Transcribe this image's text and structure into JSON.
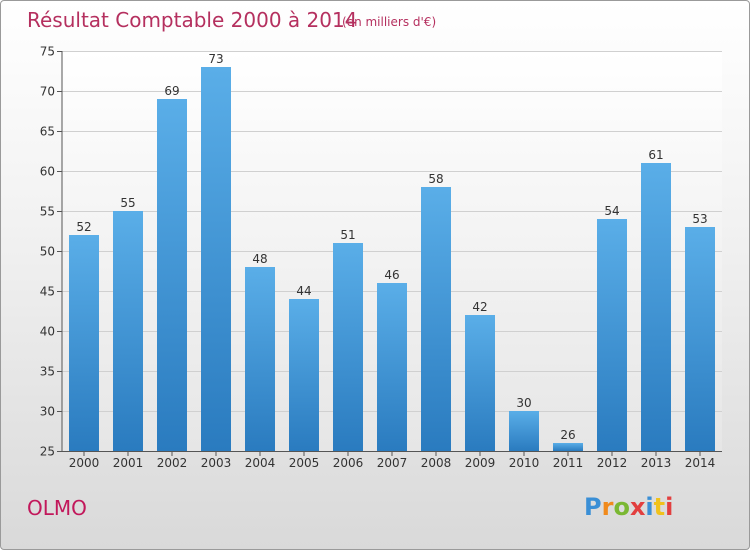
{
  "header": {
    "title": "Résultat Comptable 2000 à 2014",
    "subtitle": "(en milliers d'€)"
  },
  "footer": {
    "place_name": "OLMO",
    "logo_text": "Proxiti"
  },
  "colors": {
    "title": "#b5305f",
    "place_name": "#c2185b",
    "bar_light": "#5aaee8",
    "bar_dark": "#2a7bbf",
    "axis": "#555555",
    "grid": "#d0d0d0"
  },
  "chart_data": {
    "type": "bar",
    "categories": [
      "2000",
      "2001",
      "2002",
      "2003",
      "2004",
      "2005",
      "2006",
      "2007",
      "2008",
      "2009",
      "2010",
      "2011",
      "2012",
      "2013",
      "2014"
    ],
    "values": [
      52,
      55,
      69,
      73,
      48,
      44,
      51,
      46,
      58,
      42,
      30,
      26,
      54,
      61,
      53
    ],
    "ylim": [
      25,
      75
    ],
    "yticks": [
      25,
      30,
      35,
      40,
      45,
      50,
      55,
      60,
      65,
      70,
      75
    ],
    "xlabel": "",
    "ylabel": "",
    "grid": true
  }
}
